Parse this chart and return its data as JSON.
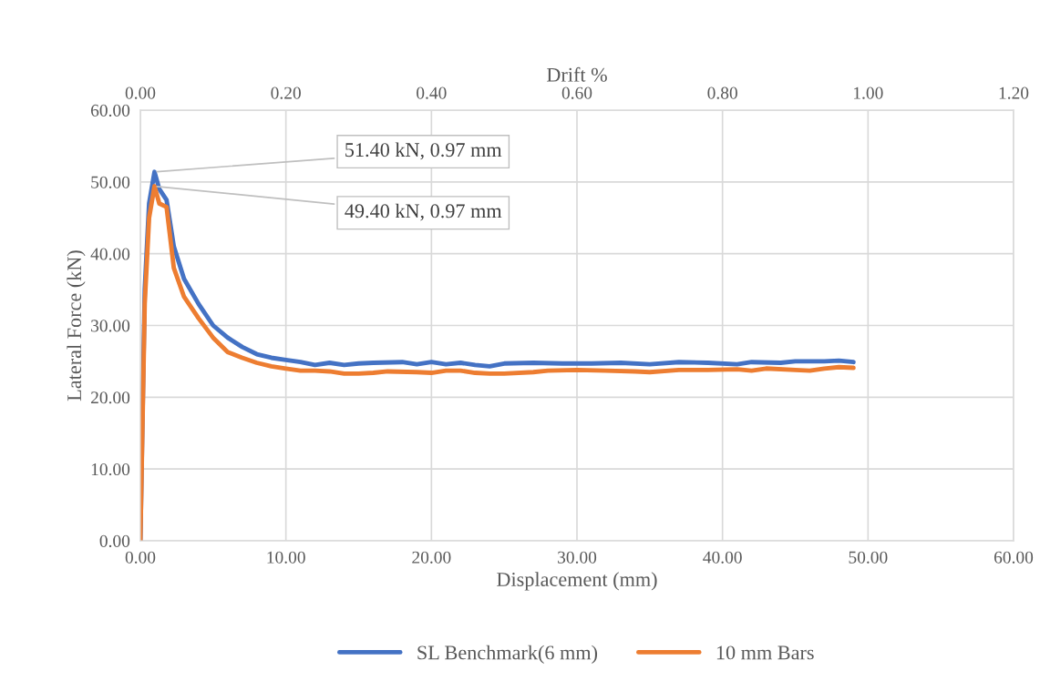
{
  "chart_data": {
    "type": "line",
    "xlabel": "Displacement (mm)",
    "ylabel": "Lateral Force (kN)",
    "x2label": "Drift %",
    "xlim": [
      0,
      60
    ],
    "xticks": [
      {
        "value": 0,
        "label": "0.00"
      },
      {
        "value": 10,
        "label": "10.00"
      },
      {
        "value": 20,
        "label": "20.00"
      },
      {
        "value": 30,
        "label": "30.00"
      },
      {
        "value": 40,
        "label": "40.00"
      },
      {
        "value": 50,
        "label": "50.00"
      },
      {
        "value": 60,
        "label": "60.00"
      }
    ],
    "x2lim": [
      0,
      1.2
    ],
    "x2ticks": [
      {
        "value": 0,
        "label": "0.00"
      },
      {
        "value": 0.2,
        "label": "0.20"
      },
      {
        "value": 0.4,
        "label": "0.40"
      },
      {
        "value": 0.6,
        "label": "0.60"
      },
      {
        "value": 0.8,
        "label": "0.80"
      },
      {
        "value": 1.0,
        "label": "1.00"
      },
      {
        "value": 1.2,
        "label": "1.20"
      }
    ],
    "ylim": [
      0,
      60
    ],
    "yticks": [
      {
        "value": 0,
        "label": "0.00"
      },
      {
        "value": 10,
        "label": "10.00"
      },
      {
        "value": 20,
        "label": "20.00"
      },
      {
        "value": 30,
        "label": "30.00"
      },
      {
        "value": 40,
        "label": "40.00"
      },
      {
        "value": 50,
        "label": "50.00"
      },
      {
        "value": 60,
        "label": "60.00"
      }
    ],
    "grid": true,
    "legend": "bottom",
    "marker": "none",
    "line_style": "solid",
    "series": [
      {
        "name": "SL Benchmark(6 mm)",
        "color": "#4472c4",
        "x": [
          0,
          0.3,
          0.6,
          0.97,
          1.3,
          1.8,
          2.3,
          3,
          4,
          5,
          6,
          7,
          8,
          9,
          10,
          11,
          12,
          13,
          14,
          15,
          16,
          18,
          19,
          20,
          21,
          22,
          23,
          24,
          25,
          27,
          29,
          31,
          33,
          35,
          37,
          39,
          41,
          42,
          44,
          45,
          47,
          48,
          49
        ],
        "values": [
          0,
          35,
          47,
          51.4,
          49,
          47.5,
          41,
          36.5,
          33,
          30,
          28.3,
          27,
          26,
          25.5,
          25.2,
          24.9,
          24.5,
          24.8,
          24.5,
          24.7,
          24.8,
          24.9,
          24.6,
          24.9,
          24.6,
          24.8,
          24.5,
          24.3,
          24.7,
          24.8,
          24.7,
          24.7,
          24.8,
          24.6,
          24.9,
          24.8,
          24.6,
          24.9,
          24.8,
          25,
          25,
          25.1,
          24.9
        ]
      },
      {
        "name": "10 mm Bars",
        "color": "#ed7d31",
        "x": [
          0,
          0.3,
          0.6,
          0.97,
          1.3,
          1.8,
          2.3,
          3,
          4,
          5,
          6,
          7,
          8,
          9,
          10,
          11,
          12,
          13,
          14,
          15,
          16,
          17,
          19,
          20,
          21,
          22,
          23,
          24,
          25,
          27,
          28,
          30,
          32,
          34,
          35,
          37,
          39,
          41,
          42,
          43,
          45,
          46,
          47,
          48,
          49
        ],
        "values": [
          0,
          33,
          45,
          49.4,
          47,
          46.5,
          38,
          34,
          31,
          28.3,
          26.3,
          25.5,
          24.8,
          24.3,
          24,
          23.7,
          23.7,
          23.6,
          23.3,
          23.3,
          23.4,
          23.6,
          23.5,
          23.4,
          23.7,
          23.7,
          23.4,
          23.3,
          23.3,
          23.5,
          23.7,
          23.8,
          23.7,
          23.6,
          23.5,
          23.8,
          23.8,
          23.9,
          23.7,
          24,
          23.8,
          23.7,
          24,
          24.2,
          24.1
        ]
      }
    ],
    "annotations": [
      {
        "text": "51.40 kN, 0.97 mm",
        "x": 0.97,
        "y": 51.4
      },
      {
        "text": "49.40 kN, 0.97 mm",
        "x": 0.97,
        "y": 49.4
      }
    ]
  }
}
